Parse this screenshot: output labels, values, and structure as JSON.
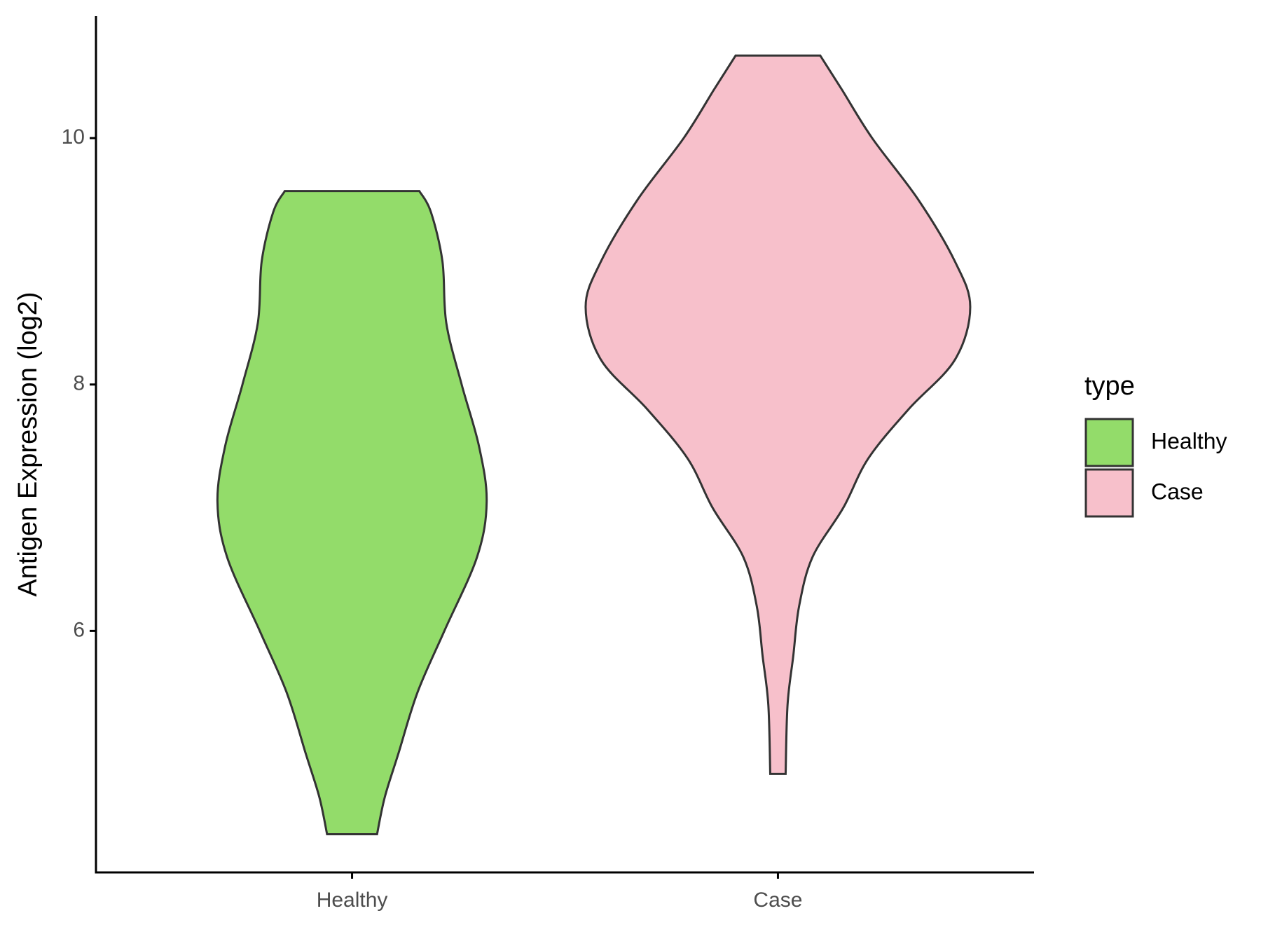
{
  "chart_data": {
    "type": "violin",
    "y_label": "Antigen Expression (log2)",
    "legend_title": "type",
    "categories": [
      "Healthy",
      "Case"
    ],
    "series": [
      {
        "name": "Healthy",
        "color": "#93dc6a",
        "y": [
          9.57,
          9.4,
          9.0,
          8.5,
          8.0,
          7.5,
          7.05,
          6.6,
          6.0,
          5.5,
          5.0,
          4.65,
          4.35
        ],
        "width": [
          0.35,
          0.41,
          0.47,
          0.49,
          0.57,
          0.66,
          0.7,
          0.65,
          0.48,
          0.34,
          0.24,
          0.17,
          0.13
        ]
      },
      {
        "name": "Case",
        "color": "#f7c0cb",
        "y": [
          10.67,
          10.4,
          10.0,
          9.5,
          9.0,
          8.63,
          8.2,
          7.8,
          7.4,
          7.0,
          6.6,
          6.2,
          5.8,
          5.4,
          4.84
        ],
        "width": [
          0.22,
          0.33,
          0.49,
          0.73,
          0.92,
          1.0,
          0.92,
          0.68,
          0.47,
          0.34,
          0.18,
          0.11,
          0.08,
          0.05,
          0.04
        ]
      }
    ],
    "ylim": [
      4.04,
      10.99
    ],
    "yticks": [
      6,
      8,
      10
    ],
    "grid": false,
    "legend": "right"
  }
}
